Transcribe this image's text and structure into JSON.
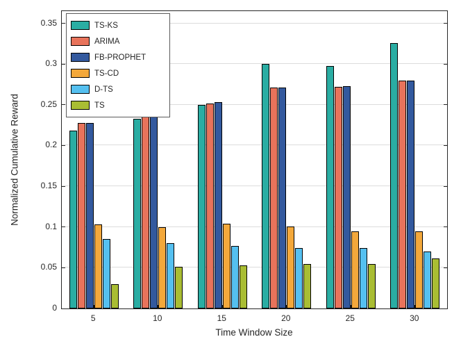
{
  "chart_data": {
    "type": "bar",
    "title": "",
    "xlabel": "Time Window Size",
    "ylabel": "Normalized Cumulative Reward",
    "categories": [
      "5",
      "10",
      "15",
      "20",
      "25",
      "30"
    ],
    "series": [
      {
        "name": "TS-KS",
        "color": "#2AADA3",
        "values": [
          0.218,
          0.233,
          0.25,
          0.3,
          0.298,
          0.326
        ]
      },
      {
        "name": "ARIMA",
        "color": "#E8735B",
        "values": [
          0.228,
          0.245,
          0.252,
          0.271,
          0.272,
          0.28
        ]
      },
      {
        "name": "FB-PROPHET",
        "color": "#33599E",
        "values": [
          0.228,
          0.245,
          0.253,
          0.271,
          0.273,
          0.28
        ]
      },
      {
        "name": "TS-CD",
        "color": "#F3A83B",
        "values": [
          0.103,
          0.1,
          0.104,
          0.101,
          0.095,
          0.095
        ]
      },
      {
        "name": "D-TS",
        "color": "#55C0F0",
        "values": [
          0.085,
          0.08,
          0.077,
          0.074,
          0.074,
          0.07
        ]
      },
      {
        "name": "TS",
        "color": "#A9BD33",
        "values": [
          0.03,
          0.051,
          0.053,
          0.055,
          0.055,
          0.061
        ]
      }
    ],
    "ylim": [
      0,
      0.365
    ],
    "yticks": [
      0,
      0.05,
      0.1,
      0.15,
      0.2,
      0.25,
      0.3,
      0.35
    ],
    "ytick_labels": [
      "0",
      "0.05",
      "0.1",
      "0.15",
      "0.2",
      "0.25",
      "0.3",
      "0.35"
    ],
    "grid": "horizontal",
    "legend_position": "top-left",
    "bar_edge_color": "#000000",
    "axis_color": "#262626"
  }
}
